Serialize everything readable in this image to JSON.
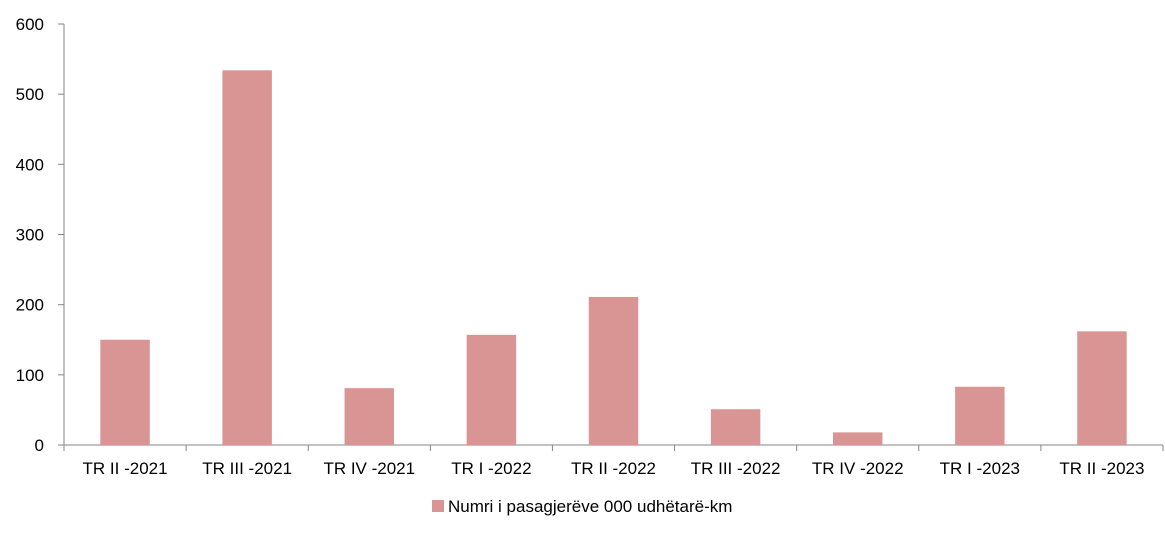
{
  "chart_data": {
    "type": "bar",
    "categories": [
      "TR II -2021",
      "TR III -2021",
      "TR IV -2021",
      "TR I -2022",
      "TR II -2022",
      "TR III -2022",
      "TR IV -2022",
      "TR I -2023",
      "TR II -2023"
    ],
    "series": [
      {
        "name": "Numri i pasagjerëve 000 udhëtarë-km",
        "values": [
          150,
          534,
          81,
          157,
          211,
          51,
          18,
          83,
          162
        ],
        "color": "#d99594"
      }
    ],
    "yticks": [
      0,
      100,
      200,
      300,
      400,
      500,
      600
    ],
    "ylim": [
      0,
      600
    ],
    "grid": false,
    "legend_position": "bottom-center"
  }
}
